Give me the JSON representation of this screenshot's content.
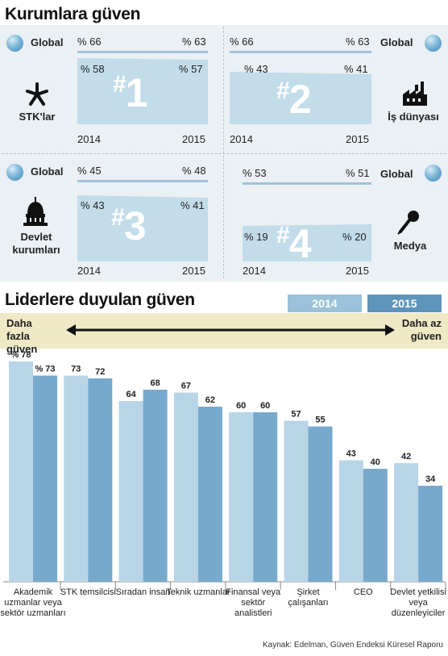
{
  "titles": {
    "institutions": "Kurumlara güven",
    "leaders": "Liderlere duyulan güven"
  },
  "colors": {
    "y2014": "#b7d5e6",
    "y2015": "#76a9cc",
    "panel_bg": "#eaf0f3",
    "band": "#efe9c6"
  },
  "institutions": [
    {
      "rank": "1",
      "name": "STK'lar",
      "icon": "asterisk-network-icon",
      "global_label": "Global",
      "global_2014": "% 66",
      "global_2015": "% 63",
      "turkey_2014": "% 58",
      "turkey_2015": "% 57",
      "year_start": "2014",
      "year_end": "2015"
    },
    {
      "rank": "2",
      "name": "İş dünyası",
      "icon": "factory-icon",
      "global_label": "Global",
      "global_2014": "% 66",
      "global_2015": "% 63",
      "turkey_2014": "% 43",
      "turkey_2015": "% 41",
      "year_start": "2014",
      "year_end": "2015"
    },
    {
      "rank": "3",
      "name": "Devlet kurumları",
      "icon": "capitol-dome-icon",
      "global_label": "Global",
      "global_2014": "% 45",
      "global_2015": "% 48",
      "turkey_2014": "% 43",
      "turkey_2015": "% 41",
      "year_start": "2014",
      "year_end": "2015"
    },
    {
      "rank": "4",
      "name": "Medya",
      "icon": "microphone-icon",
      "global_label": "Global",
      "global_2014": "% 53",
      "global_2015": "% 51",
      "turkey_2014": "% 19",
      "turkey_2015": "% 20",
      "year_start": "2014",
      "year_end": "2015"
    }
  ],
  "legend": {
    "y2014": "2014",
    "y2015": "2015"
  },
  "scale": {
    "more_trust": "Daha fazla güven",
    "less_trust": "Daha az güven"
  },
  "chart_data": {
    "type": "bar",
    "title": "Liderlere duyulan güven",
    "categories": [
      "Akademik uzmanlar veya sektör uzmanları",
      "STK temsilcisi",
      "Sıradan insan",
      "Teknik uzmanlar",
      "Finansal veya sektör analistleri",
      "Şirket çalışanları",
      "CEO",
      "Devlet yetkilisi veya düzenleyiciler"
    ],
    "series": [
      {
        "name": "2014",
        "values": [
          78,
          73,
          64,
          67,
          60,
          57,
          43,
          42
        ]
      },
      {
        "name": "2015",
        "values": [
          73,
          72,
          68,
          62,
          60,
          55,
          40,
          34
        ]
      }
    ],
    "value_labels": {
      "2014": [
        "% 78",
        "73",
        "64",
        "67",
        "60",
        "57",
        "43",
        "42"
      ],
      "2015": [
        "% 73",
        "72",
        "68",
        "62",
        "60",
        "55",
        "40",
        "34"
      ]
    },
    "ylim": [
      0,
      78
    ],
    "legend": "top-right",
    "grid": false
  },
  "source": "Kaynak: Edelman, Güven Endeksi Küresel Raporu"
}
